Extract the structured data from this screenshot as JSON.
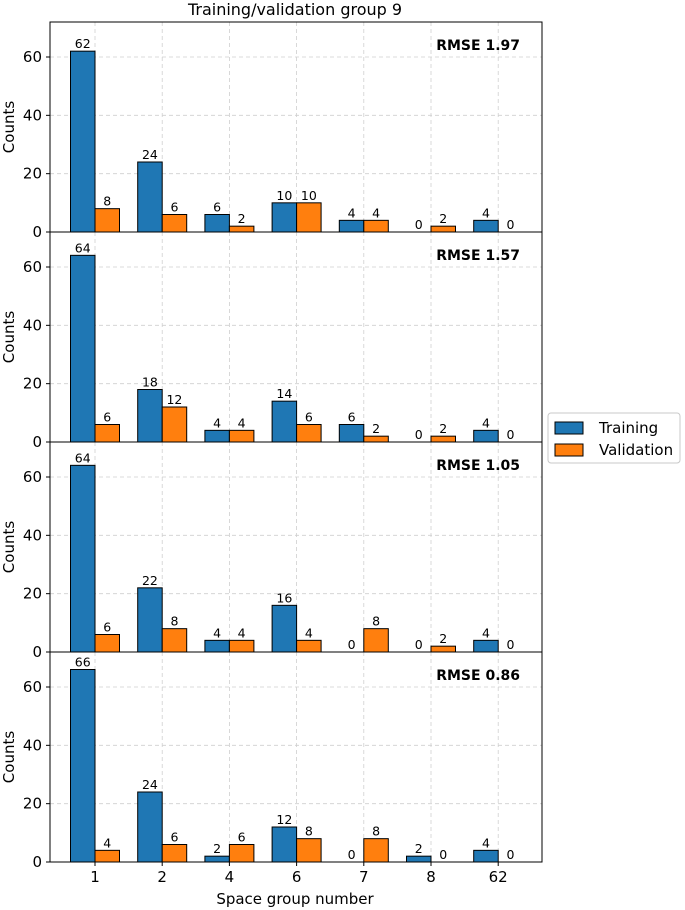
{
  "chart_data": {
    "type": "bar",
    "title": "Training/validation group 9",
    "xlabel": "Space group number",
    "ylabel": "Counts",
    "categories": [
      "1",
      "2",
      "4",
      "6",
      "7",
      "8",
      "62"
    ],
    "ylim": [
      0,
      72
    ],
    "yticks": [
      0,
      20,
      40,
      60
    ],
    "grid": true,
    "legend": {
      "placement": "right",
      "entries": [
        "Training",
        "Validation"
      ]
    },
    "colors": {
      "Training": "#1f77b4",
      "Validation": "#ff7f0e"
    },
    "panels": [
      {
        "annotation": "RMSE 1.97",
        "series": [
          {
            "name": "Training",
            "values": [
              62,
              24,
              6,
              10,
              4,
              0,
              4
            ]
          },
          {
            "name": "Validation",
            "values": [
              8,
              6,
              2,
              10,
              4,
              2,
              0
            ]
          }
        ]
      },
      {
        "annotation": "RMSE 1.57",
        "series": [
          {
            "name": "Training",
            "values": [
              64,
              18,
              4,
              14,
              6,
              0,
              4
            ]
          },
          {
            "name": "Validation",
            "values": [
              6,
              12,
              4,
              6,
              2,
              2,
              0
            ]
          }
        ]
      },
      {
        "annotation": "RMSE 1.05",
        "series": [
          {
            "name": "Training",
            "values": [
              64,
              22,
              4,
              16,
              0,
              0,
              4
            ]
          },
          {
            "name": "Validation",
            "values": [
              6,
              8,
              4,
              4,
              8,
              2,
              0
            ]
          }
        ]
      },
      {
        "annotation": "RMSE 0.86",
        "series": [
          {
            "name": "Training",
            "values": [
              66,
              24,
              2,
              12,
              0,
              2,
              4
            ]
          },
          {
            "name": "Validation",
            "values": [
              4,
              6,
              6,
              8,
              8,
              0,
              0
            ]
          }
        ]
      }
    ]
  }
}
